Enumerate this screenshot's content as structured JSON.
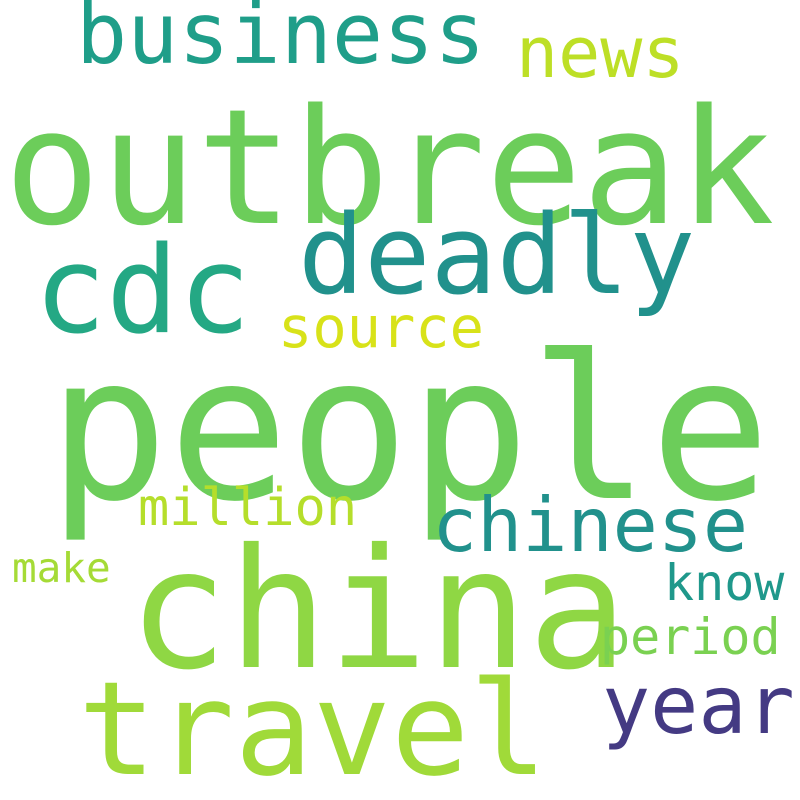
{
  "words": {
    "outbreak": {
      "text": "outbreak",
      "color": "#6ccd5a"
    },
    "people": {
      "text": "people",
      "color": "#6ccd5a"
    },
    "china": {
      "text": "china",
      "color": "#8fd744"
    },
    "travel": {
      "text": "travel",
      "color": "#a0da39"
    },
    "cdc": {
      "text": "cdc",
      "color": "#24a884"
    },
    "deadly": {
      "text": "deadly",
      "color": "#21918c"
    },
    "business": {
      "text": "business",
      "color": "#1f9e89"
    },
    "news": {
      "text": "news",
      "color": "#bddf26"
    },
    "source": {
      "text": "source",
      "color": "#d8e219"
    },
    "chinese": {
      "text": "chinese",
      "color": "#21918c"
    },
    "million": {
      "text": "million",
      "color": "#b5de2b"
    },
    "make": {
      "text": "make",
      "color": "#a5db36"
    },
    "know": {
      "text": "know",
      "color": "#1f988b"
    },
    "period": {
      "text": "period",
      "color": "#7ad151"
    },
    "year": {
      "text": "year",
      "color": "#443a83"
    }
  }
}
